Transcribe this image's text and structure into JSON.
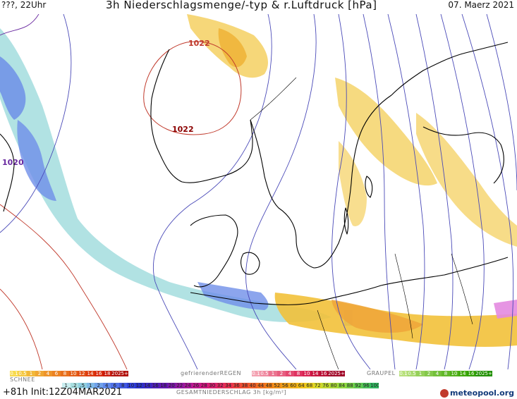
{
  "header": {
    "left": "???, 22Uhr",
    "title": "3h Niederschlagsmenge/-typ & r.Luftdruck [hPa]",
    "date": "07. Maerz 2021"
  },
  "isobar_labels": [
    {
      "text": "1022",
      "color": "#c0392b"
    },
    {
      "text": "1022",
      "color": "#8b0000"
    },
    {
      "text": "1020",
      "color": "#6a2aa0"
    }
  ],
  "legend": {
    "rain_label": "",
    "rain_values": [
      "0.1",
      "0.5",
      "1",
      "2",
      "4",
      "6",
      "8",
      "10",
      "12",
      "14",
      "16",
      "18",
      "2025+"
    ],
    "freezing_label": "gefrierenderREGEN",
    "freezing_values": [
      "0.1",
      "0.5",
      "1",
      "2",
      "4",
      "8",
      "10",
      "14",
      "16",
      "2025+"
    ],
    "graupel_label": "GRAUPEL",
    "graupel_values": [
      "0.1",
      "0.5",
      "1",
      "2",
      "4",
      "8",
      "10",
      "14",
      "16",
      "2025+"
    ],
    "snow_label": "SCHNEE",
    "snow_values": [
      "1",
      ".2",
      ".5",
      "1",
      "2",
      "4",
      "6",
      "8",
      "10",
      "12",
      "14",
      "16",
      "18",
      "20",
      "22",
      "24",
      "26",
      "28",
      "30",
      "32",
      "34",
      "36",
      "38",
      "40",
      "44",
      "48",
      "52",
      "56",
      "60",
      "64",
      "68",
      "72",
      "76",
      "80",
      "84",
      "88",
      "92",
      "96",
      "100"
    ],
    "total_label": "GESAMTNIEDERSCHLAG 3h [kg/m²]"
  },
  "footer": {
    "run": "+81h Init:12Z04MAR2021",
    "logo": "meteopool.org"
  },
  "colors": {
    "rain": "#f2c13a",
    "snow": "#6f8fe8",
    "snow_light": "#a9dfe0",
    "freezing": "#e35a7a",
    "graupel": "#8ad060",
    "isobar": "#4a4ab8",
    "coast": "#000000"
  }
}
